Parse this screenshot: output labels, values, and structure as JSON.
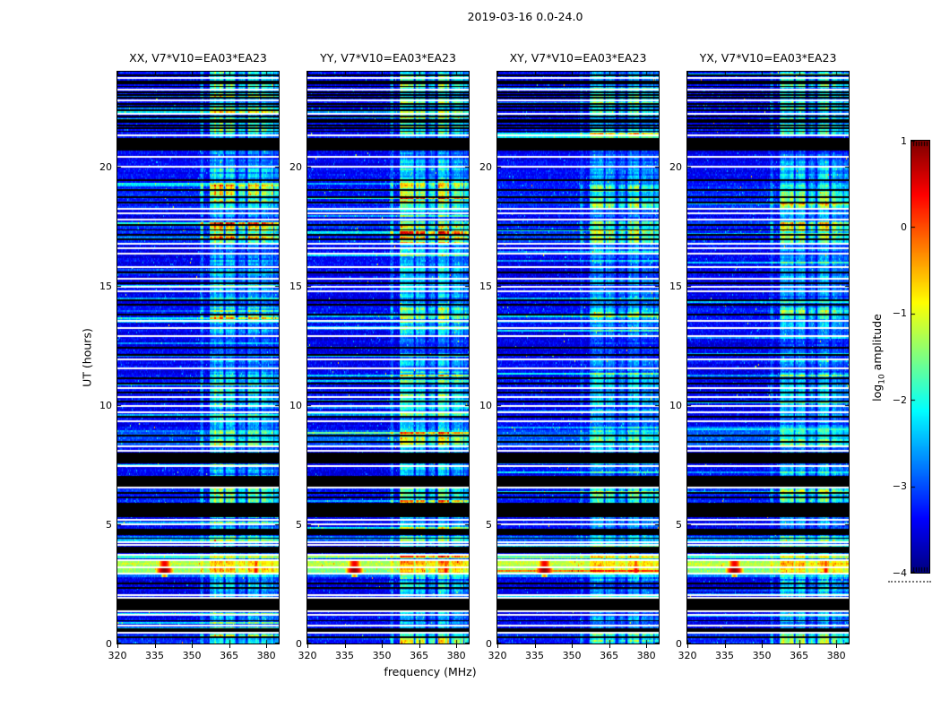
{
  "figure": {
    "title": "2019-03-16 0.0-24.0",
    "xlabel": "frequency (MHz)",
    "ylabel": "UT (hours)",
    "background_color": "#ffffff"
  },
  "chart_data": {
    "type": "heatmap",
    "title": "2019-03-16 0.0-24.0",
    "xlabel": "frequency (MHz)",
    "ylabel": "UT (hours)",
    "x_range": [
      320,
      385
    ],
    "y_range": [
      0,
      24
    ],
    "x_ticks": [
      320,
      335,
      350,
      365,
      380
    ],
    "y_ticks": [
      0,
      5,
      10,
      15,
      20
    ],
    "grid": false,
    "colormap": "jet",
    "vmin": -4,
    "vmax": 1,
    "panels": [
      {
        "title": "XX, V7*V10=EA03*EA23",
        "seed": 101,
        "rfi_gain": 1.0
      },
      {
        "title": "YY, V7*V10=EA03*EA23",
        "seed": 202,
        "rfi_gain": 1.06
      },
      {
        "title": "XY, V7*V10=EA03*EA23",
        "seed": 303,
        "rfi_gain": 0.8
      },
      {
        "title": "YX, V7*V10=EA03*EA23",
        "seed": 404,
        "rfi_gain": 0.88
      }
    ],
    "colorbar": {
      "label_prefix": "log",
      "label_sub": "10",
      "label_suffix": " amplitude",
      "ticks": [
        1,
        0,
        -1,
        -2,
        -3,
        -4
      ],
      "position": "right"
    },
    "background": {
      "base_log_amp": -3.55,
      "rfi_level": 0.45
    },
    "rfi_bands": [
      {
        "f0": 353.6,
        "f1": 354.4,
        "w": 0.45
      },
      {
        "f0": 357.5,
        "f1": 362.6,
        "w": 1.0
      },
      {
        "f0": 363.8,
        "f1": 367.3,
        "w": 0.85
      },
      {
        "f0": 369.0,
        "f1": 371.3,
        "w": 0.6
      },
      {
        "f0": 372.8,
        "f1": 376.9,
        "w": 0.95
      },
      {
        "f0": 378.2,
        "f1": 382.6,
        "w": 0.75
      },
      {
        "f0": 383.4,
        "f1": 384.8,
        "w": 0.55
      }
    ],
    "segments": [
      {
        "ut0": 21.3,
        "ut1": 24.0,
        "base": -3.5,
        "rfi": 0.7
      },
      {
        "ut0": 20.45,
        "ut1": 21.25,
        "base": -3.55,
        "rfi": 0.35
      },
      {
        "ut0": 19.25,
        "ut1": 20.0,
        "base": -3.5,
        "rfi": 0.55
      },
      {
        "ut0": 18.3,
        "ut1": 19.25,
        "base": -3.35,
        "rfi": 0.92
      },
      {
        "ut0": 16.8,
        "ut1": 17.72,
        "base": -3.3,
        "rfi": 1.0
      },
      {
        "ut0": 13.6,
        "ut1": 14.12,
        "base": -3.4,
        "rfi": 0.8
      },
      {
        "ut0": 11.95,
        "ut1": 12.9,
        "base": -3.6,
        "rfi": 0.3
      },
      {
        "ut0": 10.0,
        "ut1": 11.4,
        "base": -3.5,
        "rfi": 0.62
      },
      {
        "ut0": 8.3,
        "ut1": 8.95,
        "base": -3.05,
        "rfi": 0.7
      },
      {
        "ut0": 5.92,
        "ut1": 6.5,
        "base": -3.35,
        "rfi": 0.8
      },
      {
        "ut0": 4.3,
        "ut1": 4.52,
        "base": -3.0,
        "rfi": 0.5
      },
      {
        "ut0": 3.57,
        "ut1": 3.7,
        "base": -2.0,
        "rfi": 0.5
      },
      {
        "ut0": 3.23,
        "ut1": 3.47,
        "base": -1.35,
        "rfi": 0.35,
        "red_marks": [
          {
            "f": 339,
            "w": 2.0,
            "v": 0.45
          },
          {
            "f": 375.8,
            "w": 0.8,
            "v": 0.1
          }
        ]
      },
      {
        "ut0": 2.97,
        "ut1": 3.16,
        "base": -1.6,
        "rfi": 0.45,
        "red_marks": [
          {
            "f": 339,
            "w": 2.6,
            "v": 0.95
          },
          {
            "f": 375.8,
            "w": 0.9,
            "v": 0.45
          }
        ]
      },
      {
        "ut0": 2.78,
        "ut1": 2.95,
        "base": -2.9,
        "rfi": 0.45,
        "red_marks": [
          {
            "f": 339,
            "w": 1.0,
            "v": -0.3
          }
        ]
      },
      {
        "ut0": 2.05,
        "ut1": 2.75,
        "base": -3.65,
        "rfi": 0.55
      },
      {
        "ut0": 0.0,
        "ut1": 0.45,
        "base": -3.35,
        "rfi": 0.85
      }
    ],
    "white_lines": [
      23.72,
      23.25,
      22.78,
      22.25,
      21.32,
      20.42,
      20.02,
      18.24,
      18.06,
      17.78,
      16.76,
      16.6,
      16.36,
      15.8,
      15.32,
      14.96,
      14.78,
      13.54,
      13.24,
      12.92,
      11.92,
      11.54,
      10.72,
      10.34,
      9.96,
      9.72,
      9.32,
      8.26,
      8.08,
      7.44,
      6.54,
      5.2,
      5.0,
      4.26,
      4.14,
      3.74,
      3.51,
      3.19,
      2.93,
      2.02,
      1.92,
      1.36,
      1.2,
      0.74,
      0.46
    ],
    "black_lines": [
      23.85,
      23.6,
      23.5,
      23.38,
      23.12,
      23.02,
      22.9,
      22.65,
      22.52,
      22.38,
      22.12,
      21.98,
      21.9,
      21.75,
      21.62,
      21.5,
      19.45,
      19.02,
      18.72,
      18.5,
      17.56,
      17.36,
      17.16,
      16.96,
      15.56,
      15.12,
      14.42,
      14.22,
      13.82,
      12.42,
      12.12,
      11.12,
      10.92,
      10.52,
      10.16,
      9.52,
      8.72,
      8.48,
      6.32,
      6.12,
      4.42,
      2.52,
      2.32,
      1.72,
      1.52,
      0.96,
      0.62,
      0.26
    ],
    "black_bands": [
      [
        20.68,
        21.2
      ],
      [
        7.55,
        8.02
      ],
      [
        6.6,
        7.02
      ],
      [
        5.3,
        5.9
      ],
      [
        4.55,
        4.82
      ],
      [
        3.8,
        4.08
      ],
      [
        1.4,
        1.88
      ],
      [
        0.5,
        0.6
      ]
    ],
    "burst": {
      "ut": 3.3,
      "freq_mhz": 339,
      "peak_log_amp": 0.95,
      "secondary_freq_mhz": 375.8,
      "note": "red cross feature visible in all four panels"
    }
  }
}
